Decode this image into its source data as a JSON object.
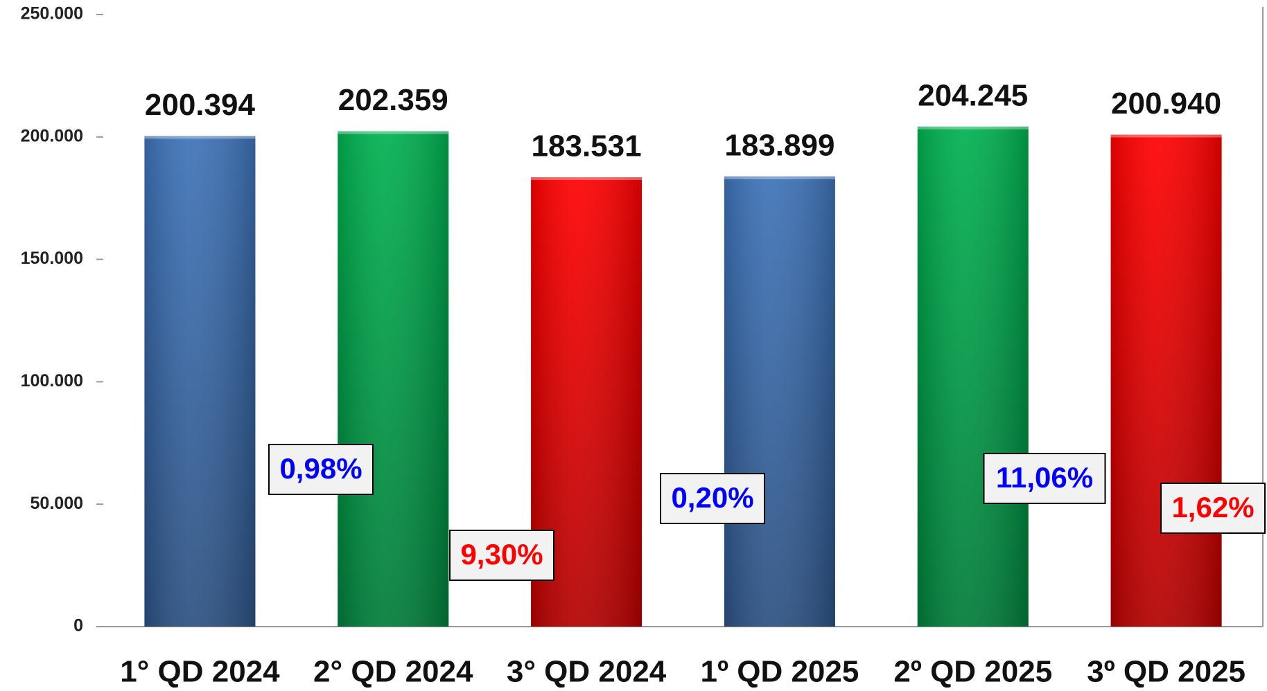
{
  "chart_data": {
    "type": "bar",
    "categories": [
      "1° QD 2024",
      "2° QD 2024",
      "3° QD 2024",
      "1º QD 2025",
      "2º QD 2025",
      "3º QD 2025"
    ],
    "values": [
      200394,
      202359,
      183531,
      183899,
      204245,
      200940
    ],
    "value_labels": [
      "200.394",
      "202.359",
      "183.531",
      "183.899",
      "204.245",
      "200.940"
    ],
    "colors": [
      "#3d72b8",
      "#00b050",
      "#ff0000",
      "#3d72b8",
      "#00b050",
      "#ff0000"
    ],
    "ylim": [
      0,
      250000
    ],
    "yticks": [
      0,
      {
        "value": 50000,
        "label": "50.000"
      },
      {
        "value": 100000,
        "label": "100.000"
      },
      {
        "value": 150000,
        "label": "150.000"
      },
      {
        "value": 200000,
        "label": "200.000"
      },
      {
        "value": 250000,
        "label": "250.000"
      }
    ],
    "annotations": [
      {
        "text": "0,98%",
        "color": "#0000ff"
      },
      {
        "text": "9,30%",
        "color": "#ff0000"
      },
      {
        "text": "0,20%",
        "color": "#0000ff"
      },
      {
        "text": "11,06%",
        "color": "#0000ff"
      },
      {
        "text": "1,62%",
        "color": "#ff0000"
      }
    ]
  }
}
